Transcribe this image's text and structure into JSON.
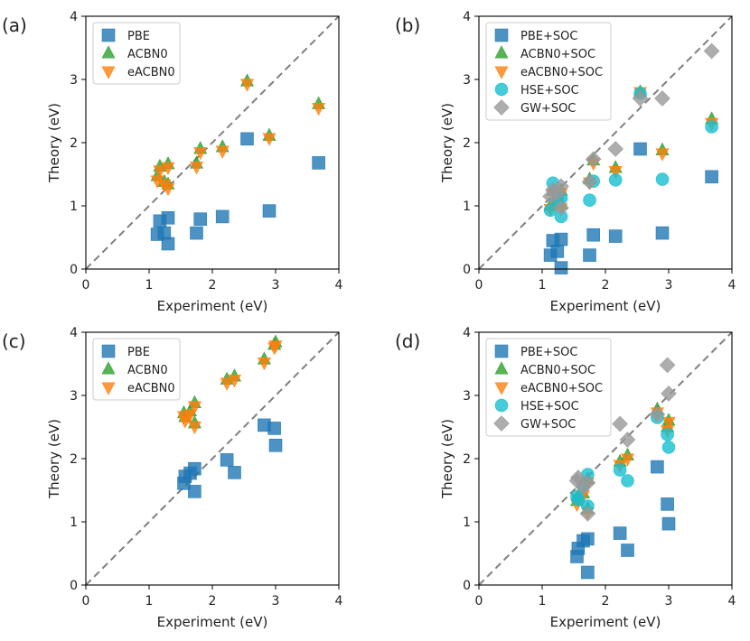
{
  "figure": {
    "description_free": true
  },
  "chart_data": [
    {
      "type": "scatter",
      "panel_label": "(a)",
      "xlabel": "Experiment (eV)",
      "ylabel": "Theory (eV)",
      "xlim": [
        0,
        4
      ],
      "ylim": [
        0,
        4
      ],
      "xticks": [
        "0",
        "1",
        "2",
        "3",
        "4"
      ],
      "yticks": [
        "0",
        "1",
        "2",
        "3",
        "4"
      ],
      "legend_position": "upper-left",
      "diagonal": true,
      "series": [
        {
          "name": "PBE",
          "marker": "square",
          "color": "#1f77b4",
          "points": [
            [
              1.13,
              0.55
            ],
            [
              1.17,
              0.76
            ],
            [
              1.24,
              0.57
            ],
            [
              1.3,
              0.81
            ],
            [
              1.3,
              0.4
            ],
            [
              1.75,
              0.57
            ],
            [
              1.81,
              0.79
            ],
            [
              2.16,
              0.83
            ],
            [
              2.55,
              2.06
            ],
            [
              2.9,
              0.92
            ],
            [
              3.68,
              1.68
            ]
          ]
        },
        {
          "name": "ACBN0",
          "marker": "triangle-up",
          "color": "#2ca02c",
          "points": [
            [
              1.13,
              1.47
            ],
            [
              1.17,
              1.62
            ],
            [
              1.24,
              1.38
            ],
            [
              1.3,
              1.66
            ],
            [
              1.3,
              1.34
            ],
            [
              1.75,
              1.67
            ],
            [
              1.81,
              1.9
            ],
            [
              2.16,
              1.93
            ],
            [
              2.55,
              2.97
            ],
            [
              2.9,
              2.11
            ],
            [
              3.68,
              2.61
            ]
          ]
        },
        {
          "name": "eACBN0",
          "marker": "triangle-down",
          "color": "#ff7f0e",
          "points": [
            [
              1.13,
              1.4
            ],
            [
              1.17,
              1.56
            ],
            [
              1.24,
              1.34
            ],
            [
              1.3,
              1.61
            ],
            [
              1.3,
              1.28
            ],
            [
              1.75,
              1.62
            ],
            [
              1.81,
              1.85
            ],
            [
              2.16,
              1.87
            ],
            [
              2.55,
              2.93
            ],
            [
              2.9,
              2.07
            ],
            [
              3.68,
              2.55
            ]
          ]
        }
      ]
    },
    {
      "type": "scatter",
      "panel_label": "(b)",
      "xlabel": "Experiment (eV)",
      "ylabel": "Theory (eV)",
      "xlim": [
        0,
        4
      ],
      "ylim": [
        0,
        4
      ],
      "xticks": [
        "0",
        "1",
        "2",
        "3",
        "4"
      ],
      "yticks": [
        "0",
        "1",
        "2",
        "3",
        "4"
      ],
      "legend_position": "upper-left",
      "diagonal": true,
      "series": [
        {
          "name": "PBE+SOC",
          "marker": "square",
          "color": "#1f77b4",
          "points": [
            [
              1.13,
              0.22
            ],
            [
              1.17,
              0.45
            ],
            [
              1.24,
              0.28
            ],
            [
              1.3,
              0.47
            ],
            [
              1.3,
              0.02
            ],
            [
              1.75,
              0.22
            ],
            [
              1.81,
              0.54
            ],
            [
              2.16,
              0.52
            ],
            [
              2.55,
              1.9
            ],
            [
              2.9,
              0.57
            ],
            [
              3.68,
              1.46
            ]
          ]
        },
        {
          "name": "ACBN0+SOC",
          "marker": "triangle-up",
          "color": "#2ca02c",
          "points": [
            [
              1.13,
              1.0
            ],
            [
              1.17,
              1.24
            ],
            [
              1.24,
              1.1
            ],
            [
              1.3,
              1.24
            ],
            [
              1.3,
              1.02
            ],
            [
              1.75,
              1.42
            ],
            [
              1.81,
              1.72
            ],
            [
              2.16,
              1.6
            ],
            [
              2.55,
              2.8
            ],
            [
              2.9,
              1.88
            ],
            [
              3.68,
              2.37
            ]
          ]
        },
        {
          "name": "eACBN0+SOC",
          "marker": "triangle-down",
          "color": "#ff7f0e",
          "points": [
            [
              1.13,
              0.95
            ],
            [
              1.17,
              1.2
            ],
            [
              1.24,
              1.05
            ],
            [
              1.3,
              1.2
            ],
            [
              1.3,
              0.96
            ],
            [
              1.75,
              1.37
            ],
            [
              1.81,
              1.68
            ],
            [
              2.16,
              1.55
            ],
            [
              2.55,
              2.8
            ],
            [
              2.9,
              1.83
            ],
            [
              3.68,
              2.31
            ]
          ]
        },
        {
          "name": "HSE+SOC",
          "marker": "circle",
          "color": "#17becf",
          "points": [
            [
              1.13,
              0.93
            ],
            [
              1.17,
              1.36
            ],
            [
              1.24,
              1.08
            ],
            [
              1.3,
              1.12
            ],
            [
              1.3,
              0.83
            ],
            [
              1.75,
              1.09
            ],
            [
              1.81,
              1.39
            ],
            [
              2.16,
              1.41
            ],
            [
              2.55,
              2.78
            ],
            [
              2.9,
              1.42
            ],
            [
              3.68,
              2.25
            ]
          ]
        },
        {
          "name": "GW+SOC",
          "marker": "diamond",
          "color": "#999999",
          "points": [
            [
              1.13,
              1.15
            ],
            [
              1.17,
              1.25
            ],
            [
              1.24,
              1.2
            ],
            [
              1.3,
              1.31
            ],
            [
              1.3,
              0.97
            ],
            [
              1.75,
              1.38
            ],
            [
              1.81,
              1.74
            ],
            [
              2.16,
              1.9
            ],
            [
              2.55,
              2.7
            ],
            [
              2.9,
              2.7
            ],
            [
              3.68,
              3.45
            ]
          ]
        }
      ]
    },
    {
      "type": "scatter",
      "panel_label": "(c)",
      "xlabel": "Experiment (eV)",
      "ylabel": "Theory (eV)",
      "xlim": [
        0,
        4
      ],
      "ylim": [
        0,
        4
      ],
      "xticks": [
        "0",
        "1",
        "2",
        "3",
        "4"
      ],
      "yticks": [
        "0",
        "1",
        "2",
        "3",
        "4"
      ],
      "legend_position": "upper-left",
      "diagonal": true,
      "series": [
        {
          "name": "PBE",
          "marker": "square",
          "color": "#1f77b4",
          "points": [
            [
              1.55,
              1.61
            ],
            [
              1.57,
              1.72
            ],
            [
              1.65,
              1.77
            ],
            [
              1.72,
              1.84
            ],
            [
              1.72,
              1.48
            ],
            [
              2.23,
              1.98
            ],
            [
              2.35,
              1.78
            ],
            [
              2.82,
              2.53
            ],
            [
              2.98,
              2.48
            ],
            [
              3.0,
              2.21
            ]
          ]
        },
        {
          "name": "ACBN0",
          "marker": "triangle-up",
          "color": "#2ca02c",
          "points": [
            [
              1.55,
              2.72
            ],
            [
              1.57,
              2.66
            ],
            [
              1.65,
              2.75
            ],
            [
              1.72,
              2.88
            ],
            [
              1.72,
              2.56
            ],
            [
              2.23,
              3.25
            ],
            [
              2.35,
              3.3
            ],
            [
              2.82,
              3.57
            ],
            [
              2.98,
              3.8
            ],
            [
              3.0,
              3.84
            ]
          ]
        },
        {
          "name": "eACBN0",
          "marker": "triangle-down",
          "color": "#ff7f0e",
          "points": [
            [
              1.55,
              2.67
            ],
            [
              1.57,
              2.6
            ],
            [
              1.65,
              2.7
            ],
            [
              1.72,
              2.83
            ],
            [
              1.72,
              2.51
            ],
            [
              2.23,
              3.2
            ],
            [
              2.35,
              3.25
            ],
            [
              2.82,
              3.52
            ],
            [
              2.98,
              3.76
            ],
            [
              3.0,
              3.79
            ]
          ]
        }
      ]
    },
    {
      "type": "scatter",
      "panel_label": "(d)",
      "xlabel": "Experiment (eV)",
      "ylabel": "Theory (eV)",
      "xlim": [
        0,
        4
      ],
      "ylim": [
        0,
        4
      ],
      "xticks": [
        "0",
        "1",
        "2",
        "3",
        "4"
      ],
      "yticks": [
        "0",
        "1",
        "2",
        "3",
        "4"
      ],
      "legend_position": "upper-left",
      "diagonal": true,
      "series": [
        {
          "name": "PBE+SOC",
          "marker": "square",
          "color": "#1f77b4",
          "points": [
            [
              1.55,
              0.45
            ],
            [
              1.57,
              0.58
            ],
            [
              1.65,
              0.7
            ],
            [
              1.72,
              0.73
            ],
            [
              1.72,
              0.2
            ],
            [
              2.23,
              0.82
            ],
            [
              2.35,
              0.55
            ],
            [
              2.82,
              1.87
            ],
            [
              2.98,
              1.28
            ],
            [
              3.0,
              0.97
            ]
          ]
        },
        {
          "name": "ACBN0+SOC",
          "marker": "triangle-up",
          "color": "#2ca02c",
          "points": [
            [
              1.55,
              1.33
            ],
            [
              1.57,
              1.4
            ],
            [
              1.65,
              1.45
            ],
            [
              1.72,
              1.67
            ],
            [
              1.72,
              1.2
            ],
            [
              2.23,
              1.95
            ],
            [
              2.35,
              2.05
            ],
            [
              2.82,
              2.78
            ],
            [
              2.98,
              2.5
            ],
            [
              3.0,
              2.6
            ]
          ]
        },
        {
          "name": "eACBN0+SOC",
          "marker": "triangle-down",
          "color": "#ff7f0e",
          "points": [
            [
              1.55,
              1.28
            ],
            [
              1.57,
              1.36
            ],
            [
              1.65,
              1.42
            ],
            [
              1.72,
              1.62
            ],
            [
              1.72,
              1.15
            ],
            [
              2.23,
              1.9
            ],
            [
              2.35,
              2.0
            ],
            [
              2.82,
              2.73
            ],
            [
              2.98,
              2.45
            ],
            [
              3.0,
              2.58
            ]
          ]
        },
        {
          "name": "HSE+SOC",
          "marker": "circle",
          "color": "#17becf",
          "points": [
            [
              1.55,
              1.4
            ],
            [
              1.57,
              1.35
            ],
            [
              1.65,
              1.57
            ],
            [
              1.72,
              1.75
            ],
            [
              1.72,
              1.25
            ],
            [
              2.23,
              1.82
            ],
            [
              2.35,
              1.65
            ],
            [
              2.82,
              2.65
            ],
            [
              2.98,
              2.38
            ],
            [
              3.0,
              2.18
            ]
          ]
        },
        {
          "name": "GW+SOC",
          "marker": "diamond",
          "color": "#999999",
          "points": [
            [
              1.55,
              1.65
            ],
            [
              1.57,
              1.7
            ],
            [
              1.65,
              1.55
            ],
            [
              1.72,
              1.62
            ],
            [
              1.72,
              1.13
            ],
            [
              2.23,
              2.55
            ],
            [
              2.35,
              2.3
            ],
            [
              2.82,
              2.7
            ],
            [
              2.98,
              3.48
            ],
            [
              3.0,
              3.03
            ]
          ]
        }
      ]
    }
  ]
}
